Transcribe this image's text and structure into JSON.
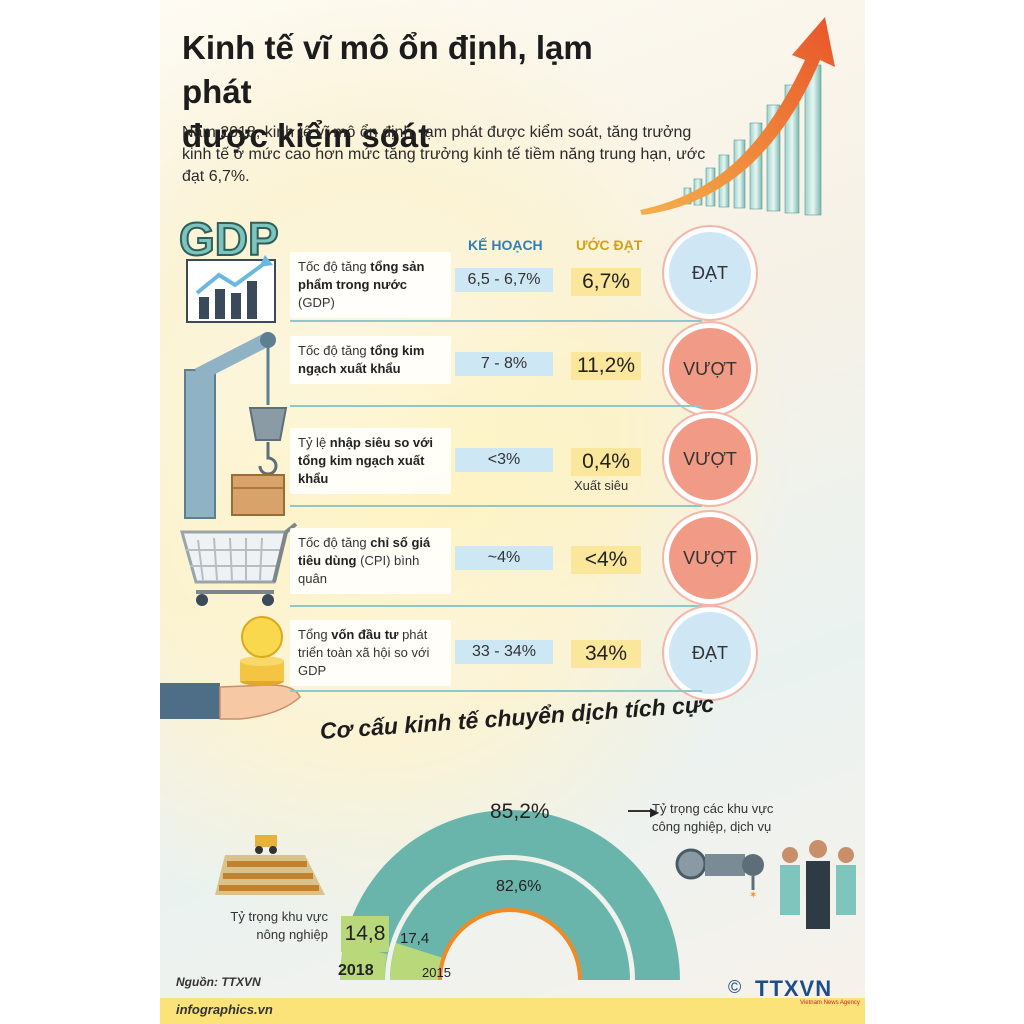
{
  "header": {
    "title_line1": "Kinh tế vĩ mô ổn định, lạm phát",
    "title_line2": "được kiểm soát",
    "intro": "Năm 2018, kinh tế vĩ mô ổn định, lạm phát được kiểm soát, tăng trưởng kinh tế ở mức cao hơn mức tăng trưởng kinh tế tiềm năng trung hạn, ước đạt 6,7%."
  },
  "gdp_icon_text": "GDP",
  "columns": {
    "plan": "KẾ HOẠCH",
    "actual": "ƯỚC ĐẠT"
  },
  "rows": [
    {
      "label_pre": "Tốc độ tăng ",
      "label_bold": "tổng sản phẩm trong nước",
      "label_post": " (GDP)",
      "plan": "6,5 - 6,7%",
      "actual": "6,7%",
      "note": "",
      "status": "ĐẠT"
    },
    {
      "label_pre": "Tốc độ tăng ",
      "label_bold": "tổng kim ngạch xuất khẩu",
      "label_post": "",
      "plan": "7 - 8%",
      "actual": "11,2%",
      "note": "",
      "status": "VƯỢT"
    },
    {
      "label_pre": "Tỷ lệ ",
      "label_bold": "nhập siêu so với tổng kim ngạch xuất khẩu",
      "label_post": "",
      "plan": "<3%",
      "actual": "0,4%",
      "note": "Xuất siêu",
      "status": "VƯỢT"
    },
    {
      "label_pre": "Tốc độ tăng ",
      "label_bold": "chỉ số giá tiêu dùng",
      "label_post": " (CPI) bình quân",
      "plan": "~4%",
      "actual": "<4%",
      "note": "",
      "status": "VƯỢT"
    },
    {
      "label_pre": "Tổng ",
      "label_bold": "vốn đầu tư",
      "label_post": " phát triển toàn xã hội so với GDP",
      "plan": "33 - 34%",
      "actual": "34%",
      "note": "",
      "status": "ĐẠT"
    }
  ],
  "structure": {
    "heading_line1": "Cơ cấu kinh tế chuyển dịch tích cực",
    "heading_line2": "Cơ cấu",
    "outer_value": "85,2%",
    "inner_value": "82,6%",
    "agri_2018": "14,8",
    "agri_2015": "17,4",
    "year_outer": "2018",
    "year_inner": "2015",
    "industry_label_1": "Tỷ trọng các khu vực",
    "industry_label_2": "công nghiệp, dịch vụ",
    "agri_label_1": "Tỷ trọng khu vực",
    "agri_label_2": "nông nghiệp"
  },
  "footer": {
    "source": "Nguồn: TTXVN",
    "site": "infographics.vn",
    "copyright": "©",
    "logo": "TTXVN",
    "agency": "Vietnam News Agency"
  },
  "colors": {
    "plan_bg": "#cde7f5",
    "actual_bg": "#fbe79c",
    "dat": "#cfe6f4",
    "vuot": "#f19a86",
    "teal": "#6ab5ab",
    "green": "#b9d87a"
  }
}
